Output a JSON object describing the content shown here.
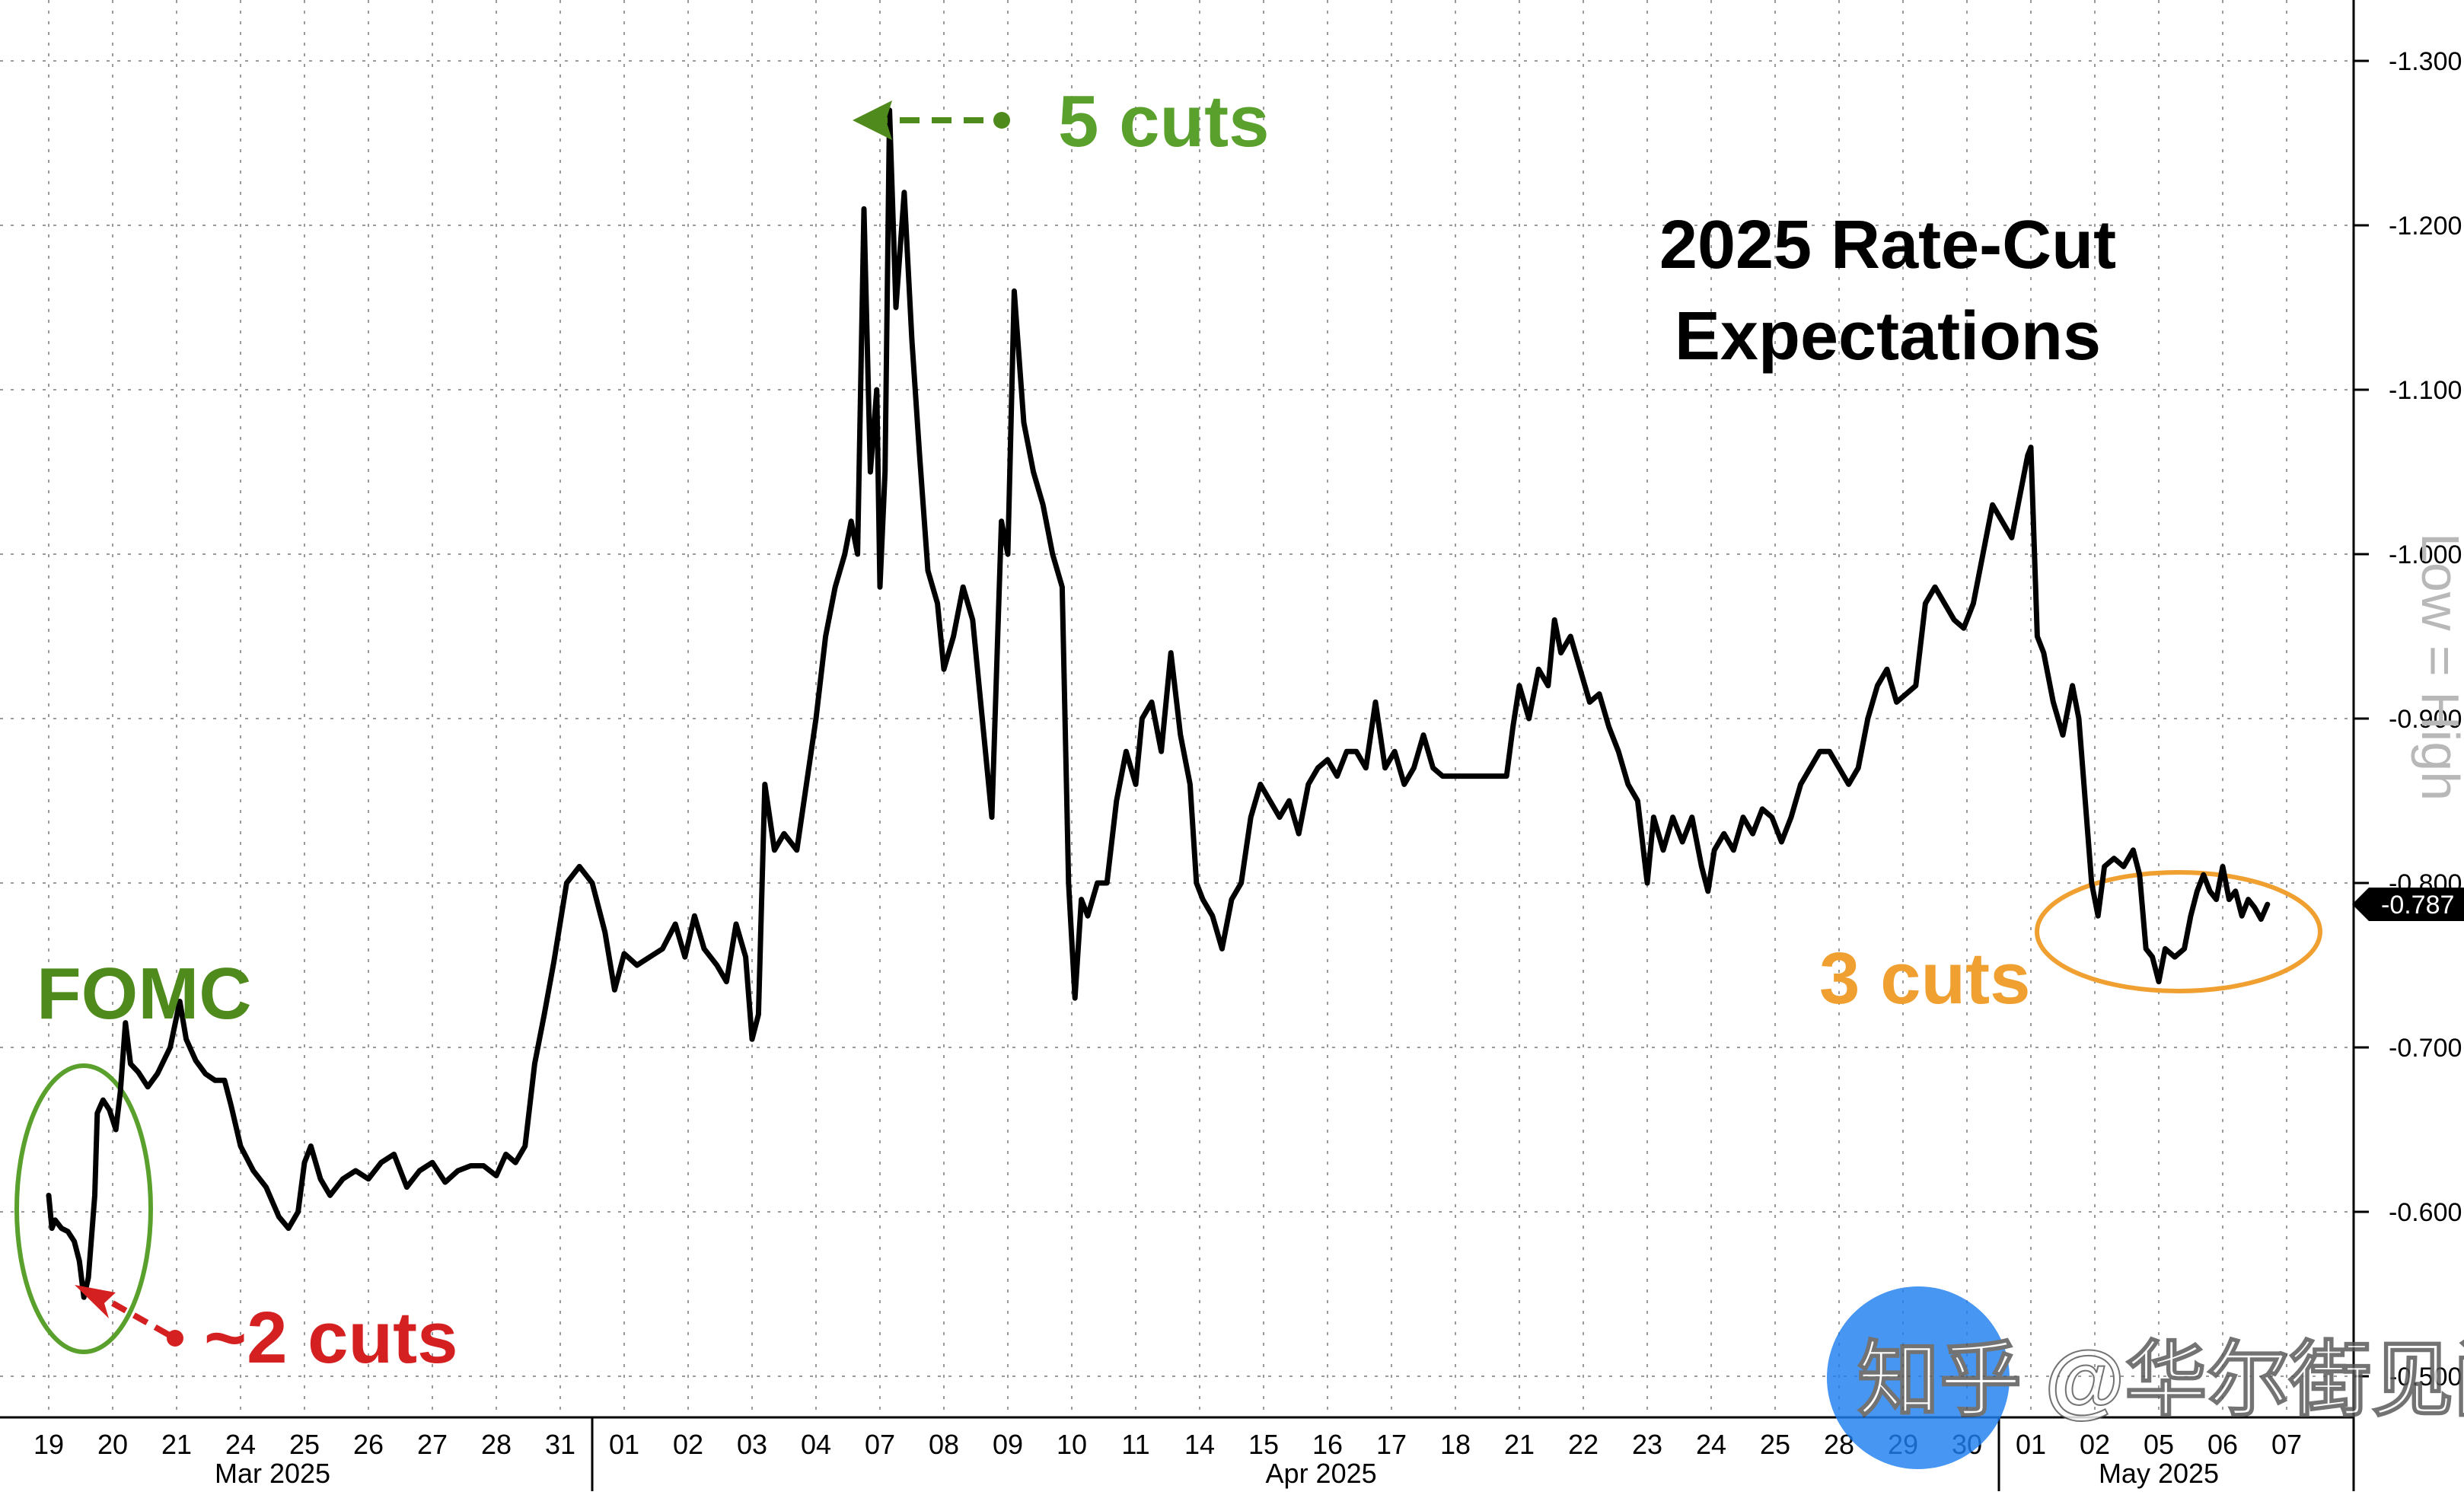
{
  "chart_data": {
    "type": "line",
    "title_line1": "2025 Rate-Cut",
    "title_line2": "Expectations",
    "y_axis_label": "Low = High",
    "ylim": [
      -0.5,
      -1.3
    ],
    "y_ticks": [
      "-1.300",
      "-1.200",
      "-1.100",
      "-1.000",
      "-0.900",
      "-0.800",
      "-0.700",
      "-0.600",
      "-0.500"
    ],
    "y_tick_values": [
      -1.3,
      -1.2,
      -1.1,
      -1.0,
      -0.9,
      -0.8,
      -0.7,
      -0.6,
      -0.5
    ],
    "last_value_label": "-0.787",
    "x_day_labels": [
      "19",
      "20",
      "21",
      "24",
      "25",
      "26",
      "27",
      "28",
      "31",
      "01",
      "02",
      "03",
      "04",
      "07",
      "08",
      "09",
      "10",
      "11",
      "14",
      "15",
      "16",
      "17",
      "18",
      "21",
      "22",
      "23",
      "24",
      "25",
      "28",
      "29",
      "30",
      "01",
      "02",
      "05",
      "06",
      "07"
    ],
    "month_labels": [
      "Mar 2025",
      "Apr 2025",
      "May 2025"
    ],
    "colors": {
      "line": "#000000",
      "green": "#5aa02c",
      "olive": "#4f8a1c",
      "red": "#d42020",
      "orange": "#f0a030",
      "grid": "#9a9a9a"
    },
    "annotations": {
      "fomc": "FOMC",
      "two_cuts": "~2 cuts",
      "five_cuts": "5 cuts",
      "three_cuts": "3 cuts"
    },
    "watermark": "知乎 @华尔街见闻",
    "series": [
      {
        "points": [
          [
            0.0,
            -0.61
          ],
          [
            0.05,
            -0.59
          ],
          [
            0.1,
            -0.595
          ],
          [
            0.2,
            -0.59
          ],
          [
            0.3,
            -0.588
          ],
          [
            0.4,
            -0.582
          ],
          [
            0.48,
            -0.57
          ],
          [
            0.55,
            -0.548
          ],
          [
            0.62,
            -0.56
          ],
          [
            0.72,
            -0.61
          ],
          [
            0.76,
            -0.66
          ],
          [
            0.85,
            -0.668
          ],
          [
            0.95,
            -0.662
          ],
          [
            1.05,
            -0.65
          ],
          [
            1.12,
            -0.673
          ],
          [
            1.2,
            -0.715
          ],
          [
            1.28,
            -0.69
          ],
          [
            1.4,
            -0.685
          ],
          [
            1.55,
            -0.676
          ],
          [
            1.7,
            -0.684
          ],
          [
            1.9,
            -0.7
          ],
          [
            2.05,
            -0.728
          ],
          [
            2.15,
            -0.705
          ],
          [
            2.3,
            -0.692
          ],
          [
            2.45,
            -0.684
          ],
          [
            2.6,
            -0.68
          ],
          [
            2.75,
            -0.68
          ],
          [
            2.85,
            -0.665
          ],
          [
            3.0,
            -0.64
          ],
          [
            3.2,
            -0.625
          ],
          [
            3.4,
            -0.615
          ],
          [
            3.6,
            -0.597
          ],
          [
            3.75,
            -0.59
          ],
          [
            3.9,
            -0.6
          ],
          [
            4.0,
            -0.63
          ],
          [
            4.1,
            -0.64
          ],
          [
            4.25,
            -0.62
          ],
          [
            4.4,
            -0.61
          ],
          [
            4.6,
            -0.62
          ],
          [
            4.8,
            -0.625
          ],
          [
            5.0,
            -0.62
          ],
          [
            5.2,
            -0.63
          ],
          [
            5.4,
            -0.635
          ],
          [
            5.6,
            -0.615
          ],
          [
            5.8,
            -0.625
          ],
          [
            6.0,
            -0.63
          ],
          [
            6.2,
            -0.618
          ],
          [
            6.4,
            -0.625
          ],
          [
            6.6,
            -0.628
          ],
          [
            6.8,
            -0.628
          ],
          [
            7.0,
            -0.622
          ],
          [
            7.15,
            -0.635
          ],
          [
            7.3,
            -0.63
          ],
          [
            7.45,
            -0.64
          ],
          [
            7.6,
            -0.69
          ],
          [
            7.75,
            -0.72
          ],
          [
            7.9,
            -0.752
          ],
          [
            8.1,
            -0.8
          ],
          [
            8.3,
            -0.81
          ],
          [
            8.5,
            -0.8
          ],
          [
            8.7,
            -0.77
          ],
          [
            8.85,
            -0.735
          ],
          [
            9.0,
            -0.757
          ],
          [
            9.2,
            -0.75
          ],
          [
            9.4,
            -0.755
          ],
          [
            9.6,
            -0.76
          ],
          [
            9.8,
            -0.775
          ],
          [
            9.95,
            -0.755
          ],
          [
            10.1,
            -0.78
          ],
          [
            10.25,
            -0.76
          ],
          [
            10.45,
            -0.75
          ],
          [
            10.6,
            -0.74
          ],
          [
            10.75,
            -0.775
          ],
          [
            10.9,
            -0.755
          ],
          [
            11.0,
            -0.705
          ],
          [
            11.1,
            -0.72
          ],
          [
            11.2,
            -0.86
          ],
          [
            11.35,
            -0.82
          ],
          [
            11.5,
            -0.83
          ],
          [
            11.7,
            -0.82
          ],
          [
            11.85,
            -0.86
          ],
          [
            12.0,
            -0.9
          ],
          [
            12.15,
            -0.95
          ],
          [
            12.3,
            -0.98
          ],
          [
            12.45,
            -1.0
          ],
          [
            12.55,
            -1.02
          ],
          [
            12.65,
            -1.0
          ],
          [
            12.75,
            -1.21
          ],
          [
            12.85,
            -1.05
          ],
          [
            12.95,
            -1.1
          ],
          [
            13.0,
            -0.98
          ],
          [
            13.08,
            -1.05
          ],
          [
            13.15,
            -1.27
          ],
          [
            13.25,
            -1.15
          ],
          [
            13.38,
            -1.22
          ],
          [
            13.5,
            -1.13
          ],
          [
            13.62,
            -1.06
          ],
          [
            13.75,
            -0.99
          ],
          [
            13.9,
            -0.97
          ],
          [
            14.0,
            -0.93
          ],
          [
            14.15,
            -0.95
          ],
          [
            14.3,
            -0.98
          ],
          [
            14.45,
            -0.96
          ],
          [
            14.6,
            -0.9
          ],
          [
            14.75,
            -0.84
          ],
          [
            14.9,
            -1.02
          ],
          [
            15.0,
            -1.0
          ],
          [
            15.1,
            -1.16
          ],
          [
            15.25,
            -1.08
          ],
          [
            15.4,
            -1.05
          ],
          [
            15.55,
            -1.03
          ],
          [
            15.7,
            -1.0
          ],
          [
            15.85,
            -0.98
          ],
          [
            15.95,
            -0.8
          ],
          [
            16.05,
            -0.73
          ],
          [
            16.15,
            -0.79
          ],
          [
            16.25,
            -0.78
          ],
          [
            16.4,
            -0.8
          ],
          [
            16.55,
            -0.8
          ],
          [
            16.7,
            -0.85
          ],
          [
            16.85,
            -0.88
          ],
          [
            17.0,
            -0.86
          ],
          [
            17.1,
            -0.9
          ],
          [
            17.25,
            -0.91
          ],
          [
            17.4,
            -0.88
          ],
          [
            17.55,
            -0.94
          ],
          [
            17.7,
            -0.89
          ],
          [
            17.85,
            -0.86
          ],
          [
            17.95,
            -0.8
          ],
          [
            18.05,
            -0.79
          ],
          [
            18.2,
            -0.78
          ],
          [
            18.35,
            -0.76
          ],
          [
            18.5,
            -0.79
          ],
          [
            18.65,
            -0.8
          ],
          [
            18.8,
            -0.84
          ],
          [
            18.95,
            -0.86
          ],
          [
            19.1,
            -0.85
          ],
          [
            19.25,
            -0.84
          ],
          [
            19.4,
            -0.85
          ],
          [
            19.55,
            -0.83
          ],
          [
            19.7,
            -0.86
          ],
          [
            19.85,
            -0.87
          ],
          [
            20.0,
            -0.875
          ],
          [
            20.15,
            -0.865
          ],
          [
            20.3,
            -0.88
          ],
          [
            20.45,
            -0.88
          ],
          [
            20.6,
            -0.87
          ],
          [
            20.75,
            -0.91
          ],
          [
            20.9,
            -0.87
          ],
          [
            21.05,
            -0.88
          ],
          [
            21.2,
            -0.86
          ],
          [
            21.35,
            -0.87
          ],
          [
            21.5,
            -0.89
          ],
          [
            21.65,
            -0.87
          ],
          [
            21.8,
            -0.865
          ],
          [
            22.0,
            -0.865
          ],
          [
            22.3,
            -0.865
          ],
          [
            22.6,
            -0.865
          ],
          [
            22.8,
            -0.865
          ],
          [
            22.9,
            -0.895
          ],
          [
            23.0,
            -0.92
          ],
          [
            23.15,
            -0.9
          ],
          [
            23.3,
            -0.93
          ],
          [
            23.45,
            -0.92
          ],
          [
            23.55,
            -0.96
          ],
          [
            23.65,
            -0.94
          ],
          [
            23.8,
            -0.95
          ],
          [
            23.95,
            -0.93
          ],
          [
            24.1,
            -0.91
          ],
          [
            24.25,
            -0.915
          ],
          [
            24.4,
            -0.895
          ],
          [
            24.55,
            -0.88
          ],
          [
            24.7,
            -0.86
          ],
          [
            24.85,
            -0.85
          ],
          [
            25.0,
            -0.8
          ],
          [
            25.1,
            -0.84
          ],
          [
            25.25,
            -0.82
          ],
          [
            25.4,
            -0.84
          ],
          [
            25.55,
            -0.825
          ],
          [
            25.7,
            -0.84
          ],
          [
            25.85,
            -0.81
          ],
          [
            25.95,
            -0.795
          ],
          [
            26.05,
            -0.82
          ],
          [
            26.2,
            -0.83
          ],
          [
            26.35,
            -0.82
          ],
          [
            26.5,
            -0.84
          ],
          [
            26.65,
            -0.83
          ],
          [
            26.8,
            -0.845
          ],
          [
            26.95,
            -0.84
          ],
          [
            27.1,
            -0.825
          ],
          [
            27.25,
            -0.84
          ],
          [
            27.4,
            -0.86
          ],
          [
            27.55,
            -0.87
          ],
          [
            27.7,
            -0.88
          ],
          [
            27.85,
            -0.88
          ],
          [
            28.0,
            -0.87
          ],
          [
            28.15,
            -0.86
          ],
          [
            28.3,
            -0.87
          ],
          [
            28.45,
            -0.9
          ],
          [
            28.6,
            -0.92
          ],
          [
            28.75,
            -0.93
          ],
          [
            28.9,
            -0.91
          ],
          [
            29.05,
            -0.915
          ],
          [
            29.2,
            -0.92
          ],
          [
            29.35,
            -0.97
          ],
          [
            29.5,
            -0.98
          ],
          [
            29.65,
            -0.97
          ],
          [
            29.8,
            -0.96
          ],
          [
            29.95,
            -0.955
          ],
          [
            30.1,
            -0.97
          ],
          [
            30.25,
            -1.0
          ],
          [
            30.4,
            -1.03
          ],
          [
            30.55,
            -1.02
          ],
          [
            30.7,
            -1.01
          ],
          [
            30.85,
            -1.04
          ],
          [
            30.95,
            -1.06
          ],
          [
            31.0,
            -1.065
          ],
          [
            31.1,
            -0.95
          ],
          [
            31.2,
            -0.94
          ],
          [
            31.35,
            -0.91
          ],
          [
            31.5,
            -0.89
          ],
          [
            31.65,
            -0.92
          ],
          [
            31.75,
            -0.9
          ],
          [
            31.85,
            -0.85
          ],
          [
            31.95,
            -0.8
          ],
          [
            32.05,
            -0.78
          ],
          [
            32.15,
            -0.81
          ],
          [
            32.3,
            -0.815
          ],
          [
            32.45,
            -0.81
          ],
          [
            32.6,
            -0.82
          ],
          [
            32.7,
            -0.805
          ],
          [
            32.8,
            -0.76
          ],
          [
            32.9,
            -0.755
          ],
          [
            33.0,
            -0.74
          ],
          [
            33.1,
            -0.76
          ],
          [
            33.25,
            -0.755
          ],
          [
            33.4,
            -0.76
          ],
          [
            33.5,
            -0.78
          ],
          [
            33.6,
            -0.795
          ],
          [
            33.7,
            -0.805
          ],
          [
            33.8,
            -0.795
          ],
          [
            33.9,
            -0.79
          ],
          [
            34.0,
            -0.81
          ],
          [
            34.1,
            -0.79
          ],
          [
            34.2,
            -0.795
          ],
          [
            34.3,
            -0.78
          ],
          [
            34.4,
            -0.79
          ],
          [
            34.5,
            -0.785
          ],
          [
            34.6,
            -0.778
          ],
          [
            34.7,
            -0.787
          ]
        ]
      }
    ]
  }
}
